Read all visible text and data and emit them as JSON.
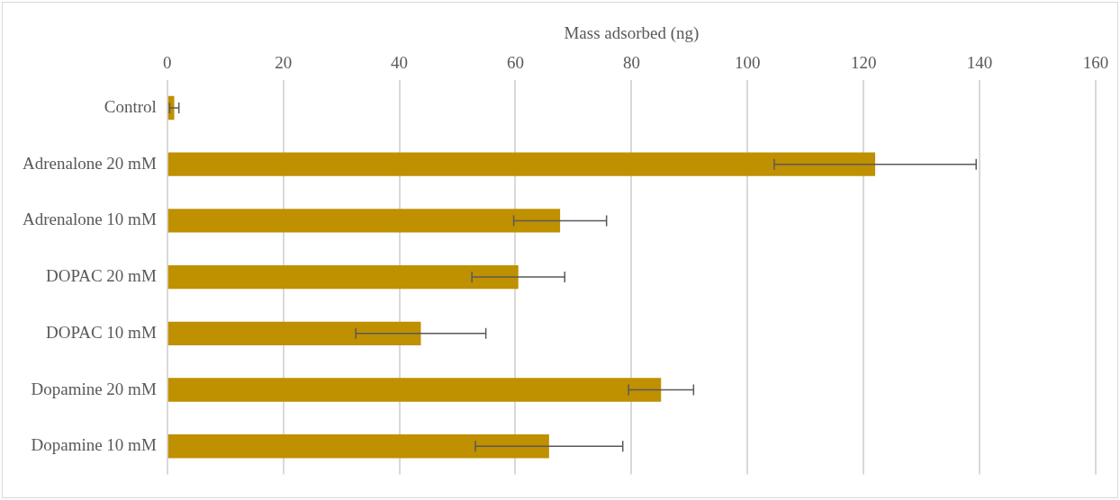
{
  "chart_data": {
    "type": "bar",
    "orientation": "horizontal",
    "xlabel": "Mass adsorbed (ng)",
    "categories": [
      "Control",
      "Adrenalone 20 mM",
      "Adrenalone 10 mM",
      "DOPAC 20 mM",
      "DOPAC 10 mM",
      "Dopamine 20 mM",
      "Dopamine 10 mM"
    ],
    "values": [
      1.2,
      122,
      67.7,
      60.5,
      43.7,
      85.1,
      65.8
    ],
    "errors": [
      0.8,
      17.4,
      8,
      8,
      11.2,
      5.6,
      12.7
    ],
    "color": "#bf9000",
    "xlim": [
      0,
      160
    ],
    "xticks": [
      0,
      20,
      40,
      60,
      80,
      100,
      120,
      140,
      160
    ],
    "grid": "x",
    "legend": false
  }
}
